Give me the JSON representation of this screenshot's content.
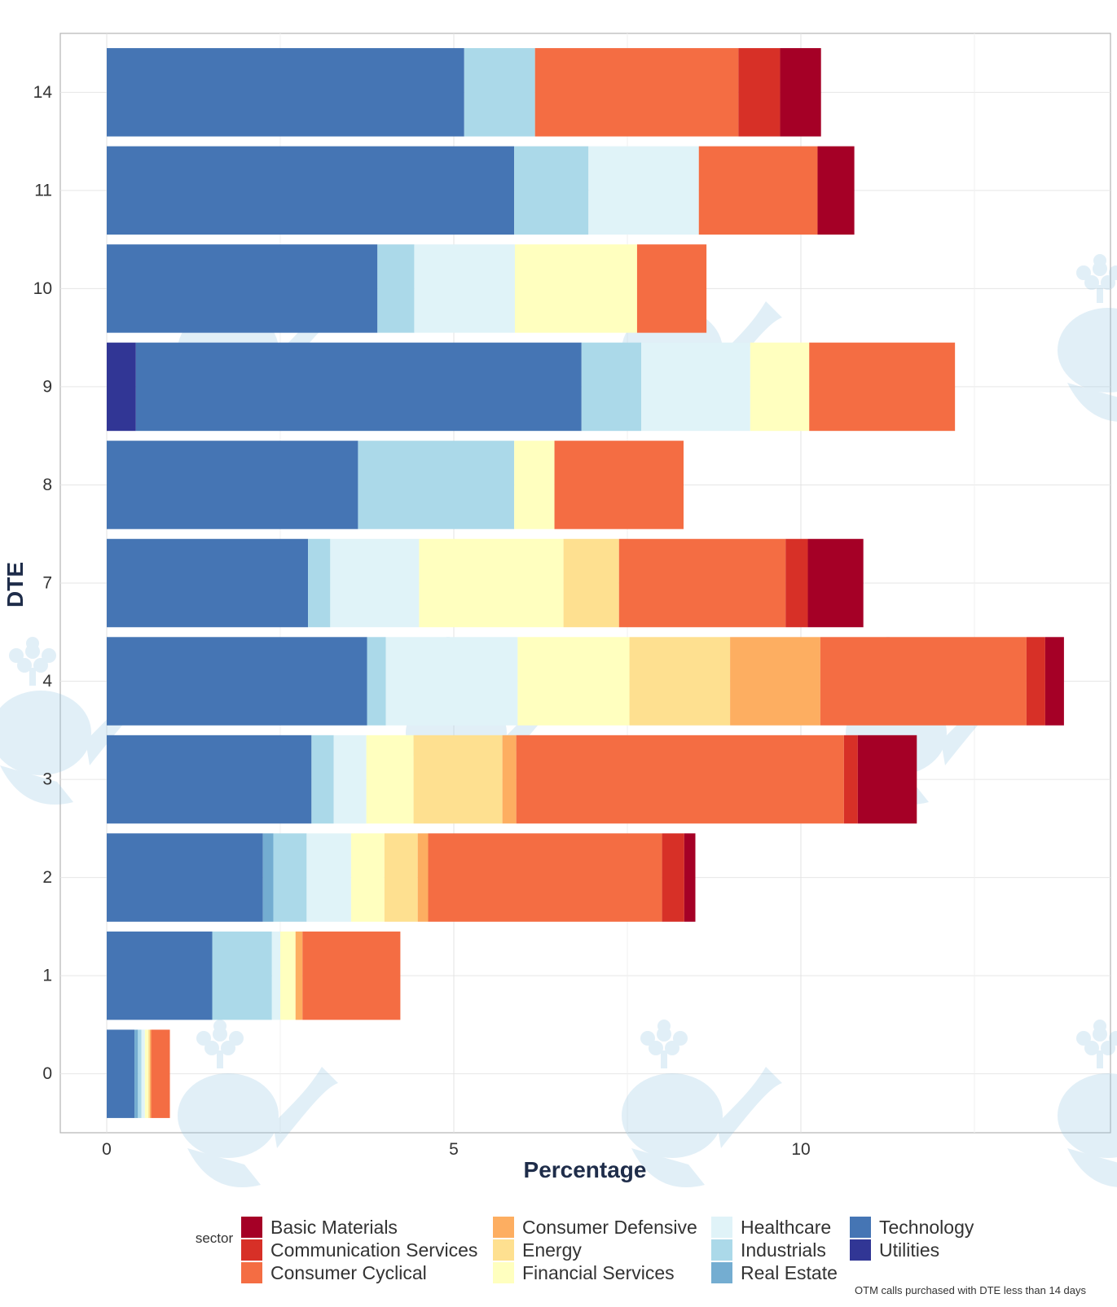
{
  "chart_data": {
    "type": "bar",
    "orientation": "horizontal",
    "stacked": true,
    "xlabel": "Percentage",
    "ylabel": "DTE",
    "xlim": [
      -0.7,
      14.5
    ],
    "x_ticks": [
      0,
      5,
      10
    ],
    "categories": [
      "0",
      "1",
      "2",
      "3",
      "4",
      "7",
      "8",
      "9",
      "10",
      "11",
      "14"
    ],
    "legend_title": "sector",
    "legend_placement": "bottom",
    "caption": "OTM calls purchased with DTE less than 14 days",
    "grid": true,
    "stack_order": [
      "Utilities",
      "Technology",
      "Real Estate",
      "Industrials",
      "Healthcare",
      "Financial Services",
      "Energy",
      "Consumer Defensive",
      "Consumer Cyclical",
      "Communication Services",
      "Basic Materials"
    ],
    "legend": [
      [
        "Basic Materials",
        "Communication Services",
        "Consumer Cyclical"
      ],
      [
        "Consumer Defensive",
        "Energy",
        "Financial Services"
      ],
      [
        "Healthcare",
        "Industrials",
        "Real Estate"
      ],
      [
        "Technology",
        "Utilities"
      ]
    ],
    "series": [
      {
        "name": "Utilities",
        "color": "#313695",
        "values": [
          0,
          0,
          0,
          0,
          0,
          0,
          0,
          0.42,
          0,
          0,
          0
        ]
      },
      {
        "name": "Technology",
        "color": "#4575b4",
        "values": [
          0.4,
          1.52,
          2.25,
          2.95,
          3.75,
          2.9,
          3.62,
          6.42,
          3.9,
          5.87,
          5.15
        ]
      },
      {
        "name": "Real Estate",
        "color": "#74add1",
        "values": [
          0.05,
          0,
          0.15,
          0,
          0,
          0,
          0,
          0,
          0,
          0,
          0
        ]
      },
      {
        "name": "Industrials",
        "color": "#abd9e9",
        "values": [
          0.05,
          0.86,
          0.48,
          0.32,
          0.27,
          0.32,
          2.25,
          0.86,
          0.53,
          1.07,
          1.02
        ]
      },
      {
        "name": "Healthcare",
        "color": "#e0f3f8",
        "values": [
          0.05,
          0.12,
          0.64,
          0.47,
          1.9,
          1.28,
          0,
          1.57,
          1.45,
          1.59,
          0
        ]
      },
      {
        "name": "Financial Services",
        "color": "#ffffbf",
        "values": [
          0.05,
          0.22,
          0.48,
          0.68,
          1.61,
          2.08,
          0.58,
          0.85,
          1.76,
          0,
          0
        ]
      },
      {
        "name": "Energy",
        "color": "#fee090",
        "values": [
          0.02,
          0,
          0.48,
          1.28,
          1.45,
          0.8,
          0,
          0,
          0,
          0,
          0
        ]
      },
      {
        "name": "Consumer Defensive",
        "color": "#fdae61",
        "values": [
          0.02,
          0.1,
          0.15,
          0.2,
          1.3,
          0,
          0,
          0,
          0,
          0,
          0
        ]
      },
      {
        "name": "Consumer Cyclical",
        "color": "#f46d43",
        "values": [
          0.27,
          1.41,
          3.37,
          4.72,
          2.97,
          2.4,
          1.86,
          2.1,
          1.0,
          1.71,
          2.93
        ]
      },
      {
        "name": "Communication Services",
        "color": "#d73027",
        "values": [
          0,
          0,
          0.32,
          0.2,
          0.27,
          0.32,
          0,
          0,
          0,
          0,
          0.6
        ]
      },
      {
        "name": "Basic Materials",
        "color": "#a50026",
        "values": [
          0,
          0,
          0.16,
          0.85,
          0.27,
          0.8,
          0,
          0,
          0,
          0.53,
          0.59
        ]
      }
    ]
  }
}
